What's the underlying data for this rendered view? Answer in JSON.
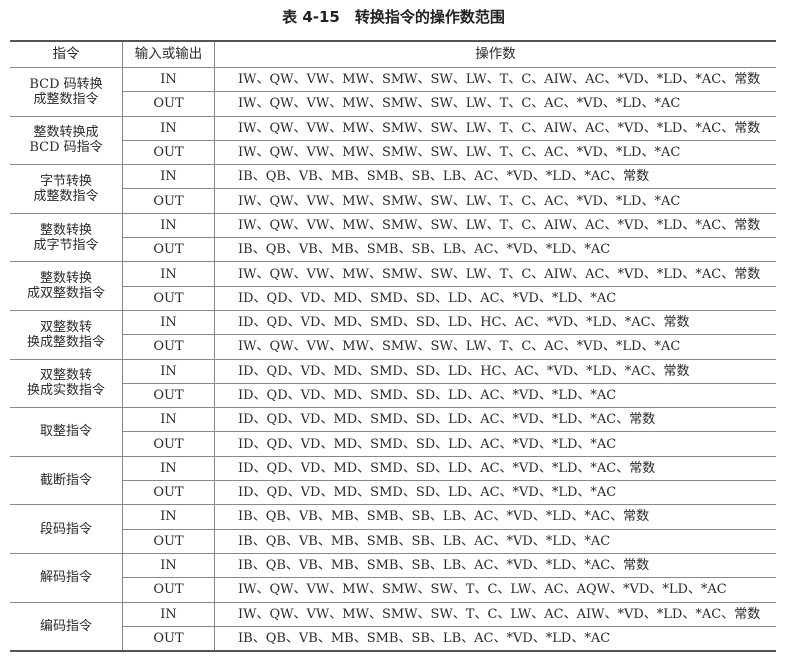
{
  "title": "表 4-15　转换指令的操作数范围",
  "headers": [
    "指令",
    "输入或输出",
    "操作数"
  ],
  "groups": [
    {
      "name": "BCD 码转换成整数指令",
      "rows": [
        [
          "IN",
          "IW、QW、VW、MW、SMW、SW、LW、T、C、AIW、AC、*VD、*LD、*AC、常数"
        ],
        [
          "OUT",
          "IW、QW、VW、MW、SMW、SW、LW、T、C、AC、*VD、*LD、*AC"
        ]
      ]
    },
    {
      "name": "整数转换成 BCD 码指令",
      "rows": [
        [
          "IN",
          "IW、QW、VW、MW、SMW、SW、LW、T、C、AIW、AC、*VD、*LD、*AC、常数"
        ],
        [
          "OUT",
          "IW、QW、VW、MW、SMW、SW、LW、T、C、AC、*VD、*LD、*AC"
        ]
      ]
    },
    {
      "name": "字节转换成整数指令",
      "rows": [
        [
          "IN",
          "IB、QB、VB、MB、SMB、SB、LB、AC、*VD、*LD、*AC、常数"
        ],
        [
          "OUT",
          "IW、QW、VW、MW、SMW、SW、LW、T、C、AC、*VD、*LD、*AC"
        ]
      ]
    },
    {
      "name": "整数转换成字节指令",
      "rows": [
        [
          "IN",
          "IW、QW、VW、MW、SMW、SW、LW、T、C、AIW、AC、*VD、*LD、*AC、常数"
        ],
        [
          "OUT",
          "IB、QB、VB、MB、SMB、SB、LB、AC、*VD、*LD、*AC"
        ]
      ]
    },
    {
      "name": "整数转换成双整数指令",
      "rows": [
        [
          "IN",
          "IW、QW、VW、MW、SMW、SW、LW、T、C、AIW、AC、*VD、*LD、*AC、常数"
        ],
        [
          "OUT",
          "ID、QD、VD、MD、SMD、SD、LD、AC、*VD、*LD、*AC"
        ]
      ]
    },
    {
      "name": "双整数转换成整数指令",
      "rows": [
        [
          "IN",
          "ID、QD、VD、MD、SMD、SD、LD、HC、AC、*VD、*LD、*AC、常数"
        ],
        [
          "OUT",
          "IW、QW、VW、MW、SMW、SW、LW、T、C、AC、*VD、*LD、*AC"
        ]
      ]
    },
    {
      "name": "双整数转换成实数指令",
      "rows": [
        [
          "IN",
          "ID、QD、VD、MD、SMD、SD、LD、HC、AC、*VD、*LD、*AC、常数"
        ],
        [
          "OUT",
          "ID、QD、VD、MD、SMD、SD、LD、AC、*VD、*LD、*AC"
        ]
      ]
    },
    {
      "name": "取整指令",
      "rows": [
        [
          "IN",
          "ID、QD、VD、MD、SMD、SD、LD、AC、*VD、*LD、*AC、常数"
        ],
        [
          "OUT",
          "ID、QD、VD、MD、SMD、SD、LD、AC、*VD、*LD、*AC"
        ]
      ]
    },
    {
      "name": "截断指令",
      "rows": [
        [
          "IN",
          "ID、QD、VD、MD、SMD、SD、LD、AC、*VD、*LD、*AC、常数"
        ],
        [
          "OUT",
          "ID、QD、VD、MD、SMD、SD、LD、AC、*VD、*LD、*AC"
        ]
      ]
    },
    {
      "name": "段码指令",
      "rows": [
        [
          "IN",
          "IB、QB、VB、MB、SMB、SB、LB、AC、*VD、*LD、*AC、常数"
        ],
        [
          "OUT",
          "IB、QB、VB、MB、SMB、SB、LB、AC、*VD、*LD、*AC"
        ]
      ]
    },
    {
      "name": "解码指令",
      "rows": [
        [
          "IN",
          "IB、QB、VB、MB、SMB、SB、LB、AC、*VD、*LD、*AC、常数"
        ],
        [
          "OUT",
          "IW、QW、VW、MW、SMW、SW、T、C、LW、AC、AQW、*VD、*LD、*AC"
        ]
      ]
    },
    {
      "name": "编码指令",
      "rows": [
        [
          "IN",
          "IW、QW、VW、MW、SMW、SW、T、C、LW、AC、AIW、*VD、*LD、*AC、常数"
        ],
        [
          "OUT",
          "IB、QB、VB、MB、SMB、SB、LB、AC、*VD、*LD、*AC"
        ]
      ]
    }
  ]
}
